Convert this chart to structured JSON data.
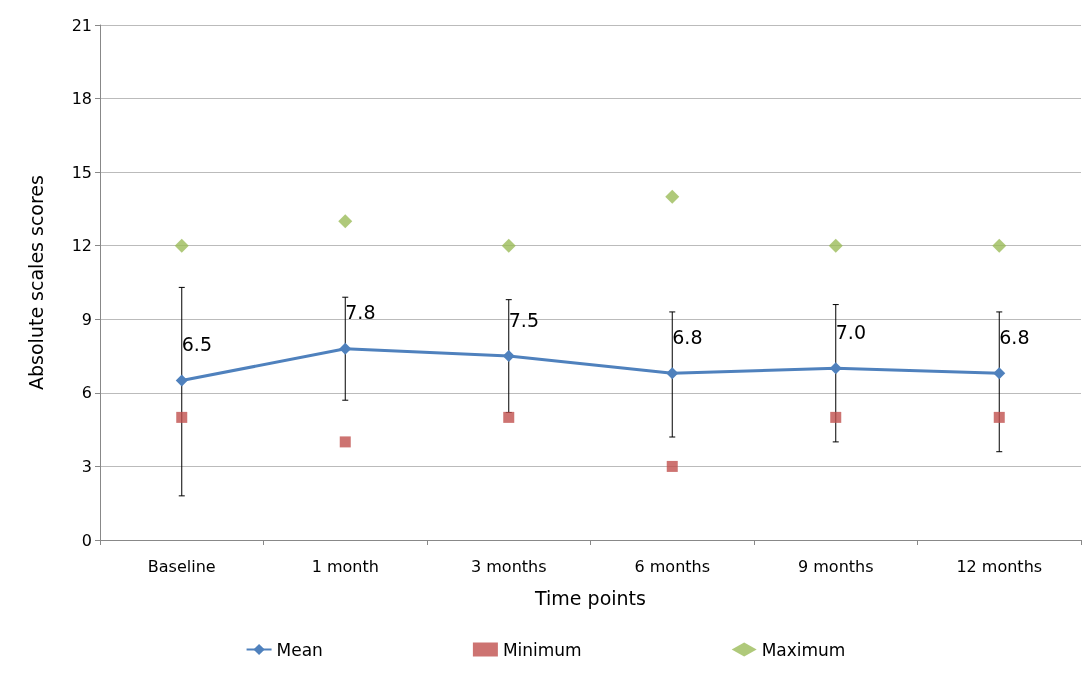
{
  "chart_data": {
    "type": "line",
    "xlabel": "Time points",
    "ylabel": "Absolute scales scores",
    "categories": [
      "Baseline",
      "1 month",
      "3 months",
      "6 months",
      "9 months",
      "12 months"
    ],
    "series": [
      {
        "name": "Mean",
        "color": "#4f81bd",
        "marker": "diamond",
        "values": [
          6.5,
          7.8,
          7.5,
          6.8,
          7.0,
          6.8
        ],
        "value_labels": [
          "6.5",
          "7.8",
          "7.5",
          "6.8",
          "7.0",
          "6.8"
        ],
        "errors": [
          [
            1.8,
            10.3
          ],
          [
            5.7,
            9.9
          ],
          [
            5.2,
            9.8
          ],
          [
            4.2,
            9.3
          ],
          [
            4.0,
            9.6
          ],
          [
            3.6,
            9.3
          ]
        ]
      },
      {
        "name": "Minimum",
        "type": "scatter",
        "color": "#c0504d",
        "marker": "square",
        "values": [
          5,
          4,
          5,
          3,
          5,
          5
        ]
      },
      {
        "name": "Maximum",
        "type": "scatter",
        "color": "#9bbb59",
        "marker": "diamond",
        "values": [
          12,
          13,
          12,
          14,
          12,
          12
        ]
      }
    ],
    "ylim": [
      0,
      21
    ],
    "yticks": [
      0,
      3,
      6,
      9,
      12,
      15,
      18,
      21
    ],
    "grid": "y",
    "legend": "bottom",
    "line_style": "solid"
  }
}
